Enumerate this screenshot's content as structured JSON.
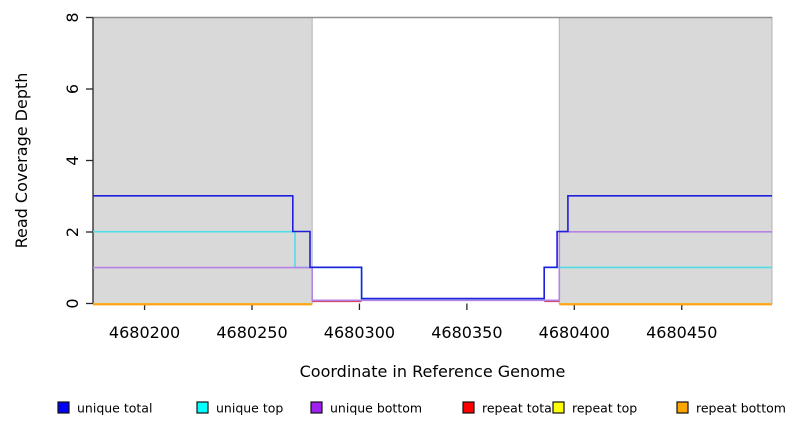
{
  "chart_data": {
    "type": "line",
    "title": "",
    "xlabel": "Coordinate in Reference Genome",
    "ylabel": "Read Coverage Depth",
    "xlim": [
      4680176,
      4680492
    ],
    "ylim": [
      0,
      8
    ],
    "xticks": [
      4680200,
      4680250,
      4680300,
      4680350,
      4680400,
      4680450
    ],
    "yticks": [
      0,
      2,
      4,
      6,
      8
    ],
    "grid": false,
    "legend_position": "bottom",
    "plot_bg": "#ffffff",
    "shaded_region_color": "#d9d9d9",
    "shaded_region_border": "#b3b3b3",
    "top_border_color": "#909090",
    "axis_color": "#262626",
    "shaded_regions": [
      {
        "x0": 4680176,
        "x1": 4680278
      },
      {
        "x0": 4680393,
        "x1": 4680492
      }
    ],
    "series": [
      {
        "name": "unique total",
        "color": "#0000FF",
        "line_color": "#1F1FDE",
        "segments": [
          [
            [
              4680176,
              3
            ],
            [
              4680269,
              3
            ],
            [
              4680269,
              2
            ],
            [
              4680277,
              2
            ],
            [
              4680277,
              1
            ],
            [
              4680301,
              1
            ],
            [
              4680301,
              0
            ],
            [
              4680386,
              0
            ],
            [
              4680386,
              1
            ],
            [
              4680392,
              1
            ],
            [
              4680392,
              2
            ],
            [
              4680397,
              2
            ],
            [
              4680397,
              3
            ],
            [
              4680492,
              3
            ]
          ]
        ]
      },
      {
        "name": "unique top",
        "color": "#00FFFF",
        "line_color": "#4FDDE8",
        "segments": [
          [
            [
              4680176,
              2
            ],
            [
              4680270,
              2
            ],
            [
              4680270,
              1
            ],
            [
              4680301,
              1
            ],
            [
              4680301,
              0
            ],
            [
              4680386,
              0
            ],
            [
              4680386,
              1
            ],
            [
              4680492,
              1
            ]
          ]
        ]
      },
      {
        "name": "unique bottom",
        "color": "#A020F0",
        "line_color": "#B583E6",
        "segments": [
          [
            [
              4680176,
              1
            ],
            [
              4680278,
              1
            ],
            [
              4680278,
              0
            ],
            [
              4680393,
              0
            ],
            [
              4680393,
              2
            ],
            [
              4680492,
              2
            ]
          ]
        ]
      },
      {
        "name": "repeat total",
        "color": "#FF0000",
        "line_color": "#D8405C",
        "segments": [
          [
            [
              4680278,
              0
            ],
            [
              4680301,
              0
            ]
          ],
          [
            [
              4680386,
              0
            ],
            [
              4680393,
              0
            ]
          ]
        ]
      },
      {
        "name": "repeat top",
        "color": "#FFFF00",
        "line_color": "#FFE800",
        "segments": [
          [
            [
              4680176,
              0
            ],
            [
              4680278,
              0
            ]
          ],
          [
            [
              4680393,
              0
            ],
            [
              4680492,
              0
            ]
          ]
        ]
      },
      {
        "name": "repeat bottom",
        "color": "#FFA500",
        "line_color": "#FFA217",
        "segments": [
          [
            [
              4680176,
              0
            ],
            [
              4680278,
              0
            ]
          ],
          [
            [
              4680393,
              0
            ],
            [
              4680492,
              0
            ]
          ]
        ]
      }
    ],
    "legend": [
      {
        "label": "unique total",
        "color": "#0000FF"
      },
      {
        "label": "unique top",
        "color": "#00FFFF"
      },
      {
        "label": "unique bottom",
        "color": "#A020F0"
      },
      {
        "label": "repeat total",
        "color": "#FF0000"
      },
      {
        "label": "repeat top",
        "color": "#FFFF00"
      },
      {
        "label": "repeat bottom",
        "color": "#FFA500"
      }
    ]
  }
}
